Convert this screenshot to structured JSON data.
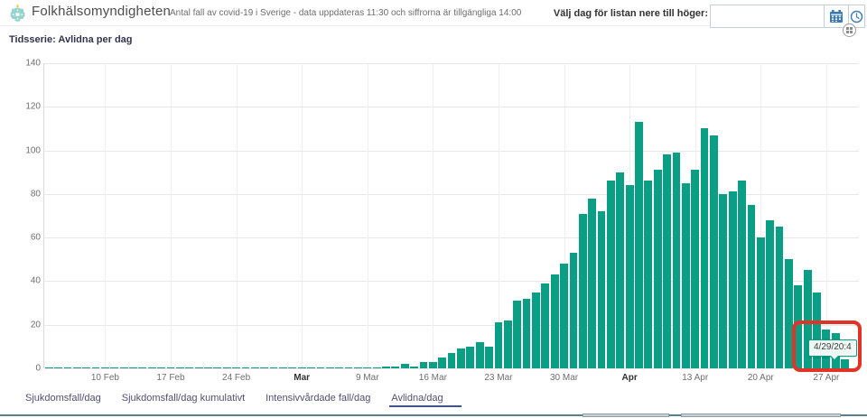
{
  "header": {
    "app_title": "Folkhälsomyndigheten",
    "subtitle": "Antal fall av covid-19 i Sverige - data uppdateras 11:30 och siffrorna är tillgängliga 14:00",
    "date_picker_label": "Välj dag för listan nere till höger:",
    "date_input_value": "",
    "calendar_icon": "calendar-icon",
    "clock_icon": "clock-icon",
    "expand_icon": "expand-icon"
  },
  "panel": {
    "title": "Tidsserie: Avlidna per dag"
  },
  "tabs": [
    {
      "label": "Sjukdomsfall/dag",
      "active": false
    },
    {
      "label": "Sjukdomsfall/dag kumulativt",
      "active": false
    },
    {
      "label": "Intensivvårdade fall/dag",
      "active": false
    },
    {
      "label": "Avlidna/dag",
      "active": true
    }
  ],
  "chart_data": {
    "type": "bar",
    "title": "Tidsserie: Avlidna per dag",
    "xlabel": "",
    "ylabel": "",
    "ylim": [
      0,
      140
    ],
    "yticks": [
      0,
      20,
      40,
      60,
      80,
      100,
      120,
      140
    ],
    "grid": true,
    "bar_color": "#0a9e85",
    "start_date": "4 Feb 2020",
    "end_date": "29 Apr 2020",
    "xticks": [
      {
        "index": 6,
        "label": "10 Feb",
        "bold": false
      },
      {
        "index": 13,
        "label": "17 Feb",
        "bold": false
      },
      {
        "index": 20,
        "label": "24 Feb",
        "bold": false
      },
      {
        "index": 27,
        "label": "Mar",
        "bold": true
      },
      {
        "index": 34,
        "label": "9 Mar",
        "bold": false
      },
      {
        "index": 41,
        "label": "16 Mar",
        "bold": false
      },
      {
        "index": 48,
        "label": "23 Mar",
        "bold": false
      },
      {
        "index": 55,
        "label": "30 Mar",
        "bold": false
      },
      {
        "index": 62,
        "label": "Apr",
        "bold": true
      },
      {
        "index": 69,
        "label": "13 Apr",
        "bold": false
      },
      {
        "index": 76,
        "label": "20 Apr",
        "bold": false
      },
      {
        "index": 83,
        "label": "27 Apr",
        "bold": false
      }
    ],
    "values": [
      0,
      0,
      0,
      0,
      0,
      0,
      0,
      0,
      0,
      0,
      0,
      0,
      0,
      0,
      0,
      0,
      0,
      0,
      0,
      0,
      0,
      0,
      0,
      0,
      0,
      0,
      0,
      0,
      0,
      0,
      0,
      0,
      0,
      0,
      0,
      0,
      1,
      1,
      2,
      1,
      3,
      3,
      5,
      7,
      9,
      10,
      12,
      10,
      21,
      22,
      31,
      32,
      35,
      39,
      43,
      48,
      53,
      71,
      78,
      72,
      86,
      90,
      84,
      113,
      86,
      91,
      98,
      99,
      85,
      91,
      110,
      107,
      80,
      81,
      86,
      75,
      60,
      68,
      65,
      50,
      38,
      45,
      35,
      18,
      16,
      4
    ],
    "tooltip_text": "4/29/20:4"
  },
  "annotation": {
    "highlight_color": "#e23327"
  },
  "colors": {
    "bar": "#0a9e85",
    "accent_blue": "#3d7ab5",
    "tab_underline": "#3952a8"
  }
}
